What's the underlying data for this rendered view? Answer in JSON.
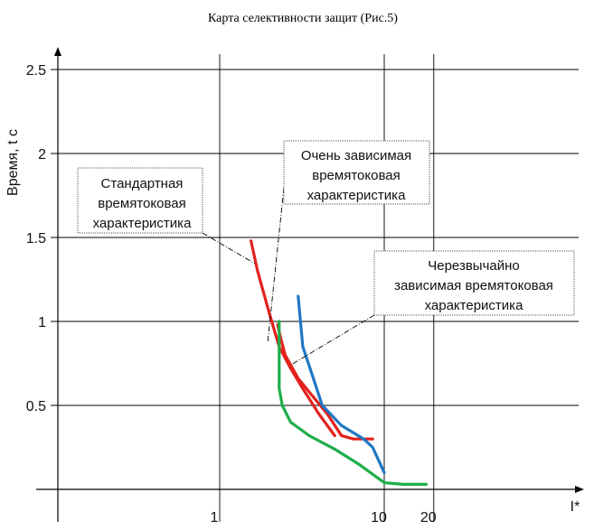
{
  "chart_data": {
    "type": "line",
    "title": "Карта селективности защит (Рис.5)",
    "ylabel": "Время, t c",
    "xlabel": "I*",
    "xscale": "log",
    "grid": true,
    "x_ticks": [
      "1",
      "10",
      "20"
    ],
    "y_ticks": [
      "0.5",
      "1",
      "1.5",
      "2",
      "2.5"
    ],
    "series": [
      {
        "color": "#e3211c",
        "points": [
          [
            1.55,
            1.48
          ],
          [
            1.7,
            1.3
          ],
          [
            2.0,
            1.05
          ],
          [
            2.3,
            0.85
          ],
          [
            2.7,
            0.72
          ],
          [
            3.2,
            0.6
          ],
          [
            4.0,
            0.45
          ],
          [
            5.0,
            0.32
          ]
        ]
      },
      {
        "color": "#e3211c",
        "points": [
          [
            2.25,
            0.98
          ],
          [
            2.35,
            0.9
          ],
          [
            2.5,
            0.8
          ],
          [
            3.0,
            0.66
          ],
          [
            3.5,
            0.58
          ],
          [
            4.5,
            0.45
          ],
          [
            5.5,
            0.32
          ],
          [
            6.5,
            0.3
          ],
          [
            8.5,
            0.3
          ]
        ]
      },
      {
        "color": "#1f77c4",
        "points": [
          [
            3.0,
            1.15
          ],
          [
            3.2,
            0.85
          ],
          [
            3.6,
            0.7
          ],
          [
            4.2,
            0.5
          ],
          [
            5.5,
            0.38
          ],
          [
            7.5,
            0.3
          ],
          [
            8.5,
            0.25
          ],
          [
            10.0,
            0.1
          ]
        ]
      },
      {
        "color": "#1fae4b",
        "points": [
          [
            2.3,
            1.0
          ],
          [
            2.3,
            0.6
          ],
          [
            2.4,
            0.5
          ],
          [
            2.7,
            0.4
          ],
          [
            3.5,
            0.32
          ],
          [
            5.0,
            0.24
          ],
          [
            7.0,
            0.15
          ],
          [
            10.0,
            0.04
          ],
          [
            13.0,
            0.03
          ],
          [
            18.0,
            0.03
          ]
        ]
      }
    ],
    "annotations": [
      {
        "lines": [
          "Стандартная",
          "времятоковая",
          "характеристика"
        ]
      },
      {
        "lines": [
          "Очень зависимая",
          "времятоковая",
          "характеристика"
        ]
      },
      {
        "lines": [
          "Черезвычайно",
          "зависимая времятоковая",
          "характеристика"
        ]
      }
    ]
  }
}
